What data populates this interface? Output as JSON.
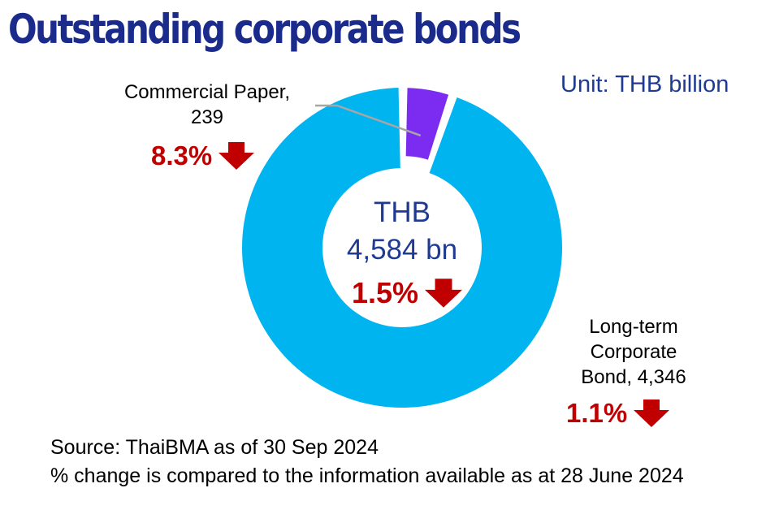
{
  "title": "Outstanding corporate bonds",
  "unit": "Unit: THB billion",
  "center": {
    "currency": "THB",
    "amount": "4,584 bn",
    "change": "1.5%"
  },
  "segments": [
    {
      "label_line1": "Commercial Paper,",
      "label_line2": "239",
      "change": "8.3%"
    },
    {
      "label_line1": "Long-term",
      "label_line2": "Corporate",
      "label_line3": "Bond,  4,346",
      "change": "1.1%"
    }
  ],
  "footnote": {
    "source": "Source: ThaiBMA as of 30 Sep 2024",
    "note": "% change is compared to the information available as at 28 June 2024"
  },
  "colors": {
    "title": "#1a2b8c",
    "text_blue": "#1f3a93",
    "commercial_paper": "#7b2cf0",
    "long_term_bond": "#00b4f0",
    "decrease": "#c00000",
    "leader_line": "#a6a6a6"
  },
  "chart_data": {
    "type": "pie",
    "style": "donut",
    "title": "Outstanding corporate bonds",
    "unit": "THB billion",
    "total": 4584,
    "total_change_pct": -1.5,
    "categories": [
      "Commercial Paper",
      "Long-term Corporate Bond"
    ],
    "values": [
      239,
      4346
    ],
    "change_pct": [
      -8.3,
      -1.1
    ],
    "start_angle": "12 o'clock",
    "direction": "clockwise"
  }
}
